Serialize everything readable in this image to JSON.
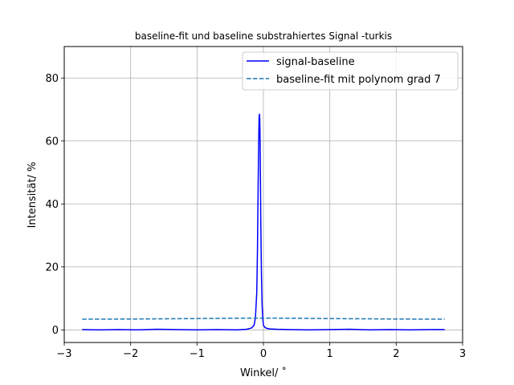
{
  "chart_data": {
    "type": "line",
    "title": "baseline-fit und baseline substrahiertes Signal -turkis",
    "xlabel": "Winkel/ ˚",
    "ylabel": "Intensität/ %",
    "xlim": [
      -3,
      3
    ],
    "ylim": [
      -4,
      90
    ],
    "xticks": [
      -3,
      -2,
      -1,
      0,
      1,
      2,
      3
    ],
    "xtick_labels": [
      "−3",
      "−2",
      "−1",
      "0",
      "1",
      "2",
      "3"
    ],
    "yticks": [
      0,
      20,
      40,
      60,
      80
    ],
    "ytick_labels": [
      "0",
      "20",
      "40",
      "60",
      "80"
    ],
    "grid": true,
    "legend_position": "top-right",
    "series": [
      {
        "name": "signal-baseline",
        "color": "#0000ff",
        "style": "solid",
        "x": [
          -2.73,
          -2.5,
          -2.2,
          -1.9,
          -1.6,
          -1.3,
          -1.0,
          -0.7,
          -0.4,
          -0.25,
          -0.18,
          -0.14,
          -0.12,
          -0.1,
          -0.09,
          -0.08,
          -0.07,
          -0.065,
          -0.06,
          -0.055,
          -0.05,
          -0.045,
          -0.04,
          -0.03,
          -0.02,
          -0.01,
          0.0,
          0.02,
          0.05,
          0.1,
          0.2,
          0.4,
          0.7,
          1.0,
          1.3,
          1.6,
          1.9,
          2.2,
          2.5,
          2.73
        ],
        "y": [
          0.1,
          0.0,
          0.1,
          0.0,
          0.2,
          0.1,
          0.0,
          0.1,
          0.0,
          0.2,
          0.6,
          1.5,
          4.0,
          12.0,
          25.0,
          45.0,
          62.0,
          67.5,
          68.5,
          67.0,
          60.0,
          48.0,
          35.0,
          18.0,
          8.0,
          3.5,
          1.5,
          0.8,
          0.5,
          0.3,
          0.2,
          0.1,
          0.0,
          0.1,
          0.2,
          0.0,
          0.1,
          0.0,
          0.1,
          0.1
        ]
      },
      {
        "name": "baseline-fit mit polynom grad 7",
        "color": "#1f77b4",
        "style": "dashed",
        "x": [
          -2.73,
          -2.0,
          -1.0,
          -0.5,
          0.0,
          0.5,
          1.0,
          2.0,
          2.73
        ],
        "y": [
          3.4,
          3.45,
          3.6,
          3.7,
          3.75,
          3.7,
          3.6,
          3.45,
          3.4
        ]
      }
    ]
  }
}
